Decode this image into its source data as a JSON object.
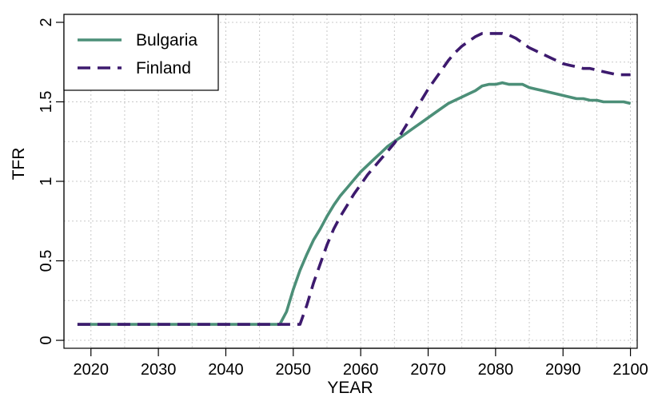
{
  "chart_data": {
    "type": "line",
    "title": "",
    "xlabel": "YEAR",
    "ylabel": "TFR",
    "xlim": [
      2016,
      2101
    ],
    "ylim": [
      -0.05,
      2.05
    ],
    "x_ticks": [
      2020,
      2030,
      2040,
      2050,
      2060,
      2070,
      2080,
      2090,
      2100
    ],
    "x_tick_labels": [
      "2020",
      "2030",
      "2040",
      "2050",
      "2060",
      "2070",
      "2080",
      "2090",
      "2100"
    ],
    "y_ticks": [
      0,
      0.5,
      1,
      1.5,
      2
    ],
    "y_tick_labels": [
      "0",
      "0.5",
      "1",
      "1.5",
      "2"
    ],
    "grid": true,
    "legend_position": "top-left",
    "series": [
      {
        "name": "Bulgaria",
        "color": "#4c8f78",
        "line_style": "solid",
        "x": [
          2018,
          2047,
          2048,
          2049,
          2050,
          2051,
          2052,
          2053,
          2054,
          2055,
          2056,
          2057,
          2058,
          2059,
          2060,
          2061,
          2062,
          2063,
          2064,
          2065,
          2066,
          2067,
          2068,
          2069,
          2070,
          2071,
          2072,
          2073,
          2074,
          2075,
          2076,
          2077,
          2078,
          2079,
          2080,
          2081,
          2082,
          2083,
          2084,
          2085,
          2086,
          2087,
          2088,
          2089,
          2090,
          2091,
          2092,
          2093,
          2094,
          2095,
          2096,
          2097,
          2098,
          2099,
          2100
        ],
        "y": [
          0.1,
          0.1,
          0.1,
          0.18,
          0.32,
          0.44,
          0.54,
          0.63,
          0.7,
          0.78,
          0.85,
          0.91,
          0.96,
          1.01,
          1.06,
          1.1,
          1.14,
          1.18,
          1.22,
          1.25,
          1.28,
          1.31,
          1.34,
          1.37,
          1.4,
          1.43,
          1.46,
          1.49,
          1.51,
          1.53,
          1.55,
          1.57,
          1.6,
          1.61,
          1.61,
          1.62,
          1.61,
          1.61,
          1.61,
          1.59,
          1.58,
          1.57,
          1.56,
          1.55,
          1.54,
          1.53,
          1.52,
          1.52,
          1.51,
          1.51,
          1.5,
          1.5,
          1.5,
          1.5,
          1.49
        ]
      },
      {
        "name": "Finland",
        "color": "#3d1a6e",
        "line_style": "dashed",
        "x": [
          2018,
          2050,
          2051,
          2052,
          2053,
          2054,
          2055,
          2056,
          2057,
          2058,
          2059,
          2060,
          2061,
          2062,
          2063,
          2064,
          2065,
          2066,
          2067,
          2068,
          2069,
          2070,
          2071,
          2072,
          2073,
          2074,
          2075,
          2076,
          2077,
          2078,
          2079,
          2080,
          2081,
          2082,
          2083,
          2084,
          2085,
          2086,
          2087,
          2088,
          2089,
          2090,
          2091,
          2092,
          2093,
          2094,
          2095,
          2096,
          2097,
          2098,
          2099,
          2100
        ],
        "y": [
          0.1,
          0.1,
          0.1,
          0.22,
          0.36,
          0.48,
          0.6,
          0.7,
          0.78,
          0.85,
          0.92,
          0.98,
          1.04,
          1.09,
          1.14,
          1.19,
          1.24,
          1.3,
          1.37,
          1.44,
          1.51,
          1.58,
          1.64,
          1.7,
          1.76,
          1.81,
          1.85,
          1.88,
          1.91,
          1.93,
          1.93,
          1.93,
          1.93,
          1.92,
          1.9,
          1.87,
          1.84,
          1.82,
          1.8,
          1.78,
          1.76,
          1.74,
          1.73,
          1.72,
          1.71,
          1.71,
          1.7,
          1.69,
          1.68,
          1.67,
          1.67,
          1.67
        ]
      }
    ]
  }
}
